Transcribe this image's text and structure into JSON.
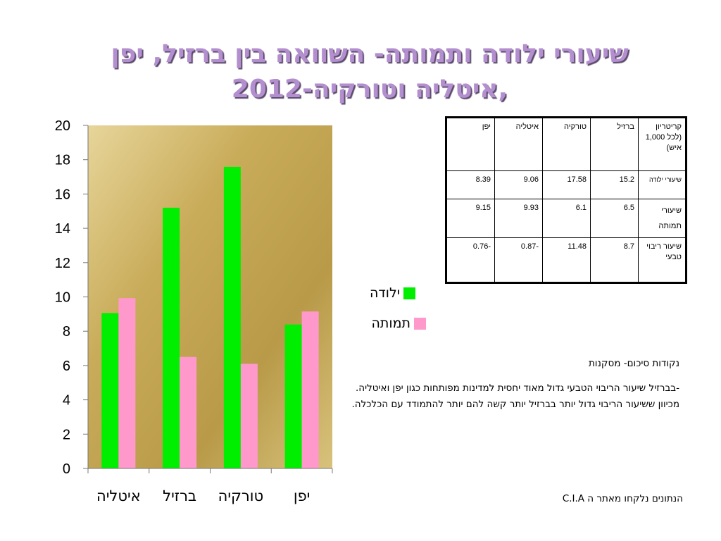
{
  "title": {
    "line1": "שיעורי ילודה ותמותה- השוואה בין ברזיל, יפן",
    "line2": "איטליה וטורקיה-2012,"
  },
  "chart_data": {
    "type": "bar",
    "categories": [
      "איטליה",
      "ברזיל",
      "טורקיה",
      "יפן"
    ],
    "series": [
      {
        "name": "ילודה",
        "color": "#00ee00",
        "values": [
          9.06,
          15.2,
          17.58,
          8.39
        ]
      },
      {
        "name": "תמותה",
        "color": "#ff99cc",
        "values": [
          9.93,
          6.5,
          6.1,
          9.15
        ]
      }
    ],
    "yticks": [
      "0",
      "2",
      "4",
      "6",
      "8",
      "10",
      "12",
      "14",
      "16",
      "18",
      "20"
    ],
    "ylim": [
      0,
      20
    ],
    "grid": true,
    "legend_position": "right",
    "plot_background": "gold-gradient"
  },
  "table": {
    "header": [
      "קריטריון (לכל 1,000 איש)",
      "ברזיל",
      "טורקיה",
      "איטליה",
      "יפן"
    ],
    "rows": [
      [
        "שיעורי ילודה",
        "15.2",
        "17.58",
        "9.06",
        "8.39"
      ],
      [
        "שיעורי תמותה",
        "6.5",
        "6.1",
        "9.93",
        "9.15"
      ],
      [
        "שיעור ריבוי טבעי",
        "8.7",
        "11.48",
        "0.87-",
        "0.76-"
      ]
    ]
  },
  "conclusions": {
    "heading": "נקודות סיכום- מסקנות",
    "line1": "-בברזיל שיעור הריבוי הטבעי גדול מאוד יחסית למדינות מפותחות כגון יפן ואיטליה.",
    "line2": "מכיוון ששיעור הריבוי גדול יותר בברזיל יותר קשה להם יותר להתמודד עם הכלכלה."
  },
  "source": "הנתונים נלקחו מאתר ה C.I.A"
}
